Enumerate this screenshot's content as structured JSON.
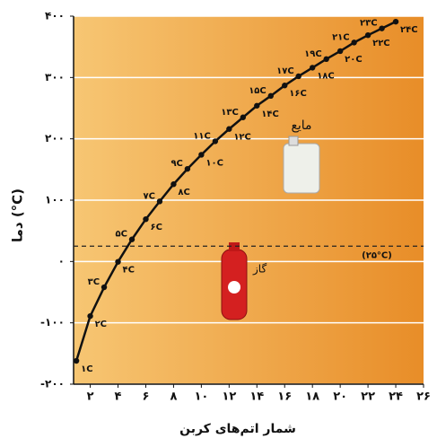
{
  "chart_data": {
    "type": "line",
    "y_label": "دما (°C)",
    "x_label": "شمار اتم‌های کربن",
    "x": [
      1,
      2,
      3,
      4,
      5,
      6,
      7,
      8,
      9,
      10,
      11,
      12,
      13,
      14,
      15,
      16,
      17,
      18,
      19,
      20,
      21,
      22,
      23,
      24
    ],
    "values": [
      -162,
      -89,
      -42,
      -0.5,
      36,
      69,
      98,
      126,
      151,
      174,
      196,
      216,
      235,
      254,
      270,
      287,
      302,
      316,
      330,
      343,
      357,
      369,
      380,
      391
    ],
    "point_labels": [
      "۱C",
      "۲C",
      "۳C",
      "۴C",
      "۵C",
      "۶C",
      "۷C",
      "۸C",
      "۹C",
      "۱۰C",
      "۱۱C",
      "۱۲C",
      "۱۳C",
      "۱۴C",
      "۱۵C",
      "۱۶C",
      "۱۷C",
      "۱۸C",
      "۱۹C",
      "۲۰C",
      "۲۱C",
      "۲۲C",
      "۲۳C",
      "۲۴C"
    ],
    "color": "#111111",
    "xlim": [
      0.8,
      26
    ],
    "ylim": [
      -200,
      400
    ],
    "xticks": [
      {
        "value": 2,
        "label": "۲"
      },
      {
        "value": 4,
        "label": "۴"
      },
      {
        "value": 6,
        "label": "۶"
      },
      {
        "value": 8,
        "label": "۸"
      },
      {
        "value": 10,
        "label": "۱۰"
      },
      {
        "value": 12,
        "label": "۱۲"
      },
      {
        "value": 14,
        "label": "۱۴"
      },
      {
        "value": 16,
        "label": "۱۶"
      },
      {
        "value": 18,
        "label": "۱۸"
      },
      {
        "value": 20,
        "label": "۲۰"
      },
      {
        "value": 22,
        "label": "۲۲"
      },
      {
        "value": 24,
        "label": "۲۴"
      },
      {
        "value": 26,
        "label": "۲۶"
      }
    ],
    "yticks": [
      {
        "value": -200,
        "label": "-۲۰۰"
      },
      {
        "value": -100,
        "label": "-۱۰۰"
      },
      {
        "value": 0,
        "label": "۰"
      },
      {
        "value": 100,
        "label": "۱۰۰"
      },
      {
        "value": 200,
        "label": "۲۰۰"
      },
      {
        "value": 300,
        "label": "۳۰۰"
      },
      {
        "value": 400,
        "label": "۴۰۰"
      }
    ],
    "grid": true,
    "reference_line": {
      "value": 25,
      "label": "(۲۵°C)"
    },
    "annotations": {
      "liquid": "مایع",
      "gas": "گاز"
    }
  }
}
